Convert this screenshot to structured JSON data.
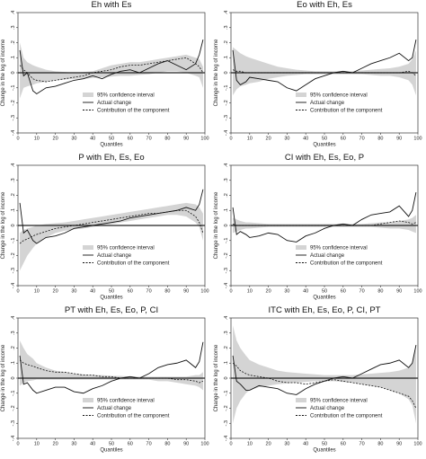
{
  "chart_data": [
    {
      "type": "line",
      "title": "Eh with Es",
      "xlabel": "Quantiles",
      "ylabel": "Change in the log of income",
      "xlim": [
        0,
        100
      ],
      "ylim": [
        -0.4,
        0.4
      ],
      "xticks": [
        "0",
        "10",
        "20",
        "30",
        "40",
        "50",
        "60",
        "70",
        "80",
        "90",
        "100"
      ],
      "yticks": [
        ".4",
        ".3",
        ".2",
        ".1",
        "0",
        "-.1",
        "-.2",
        "-.3",
        "-.4"
      ],
      "legend_position": "bottom-center",
      "x": [
        1,
        3,
        5,
        8,
        10,
        15,
        20,
        25,
        30,
        35,
        40,
        45,
        50,
        55,
        60,
        65,
        70,
        75,
        80,
        85,
        90,
        95,
        97,
        99
      ],
      "series": [
        {
          "name": "95% confidence interval",
          "style": "band",
          "lower": [
            -0.17,
            -0.1,
            -0.09,
            -0.08,
            -0.07,
            -0.06,
            -0.05,
            -0.045,
            -0.04,
            -0.04,
            -0.035,
            -0.03,
            -0.025,
            -0.02,
            -0.02,
            -0.015,
            -0.01,
            0.0,
            0.01,
            0.01,
            0.0,
            -0.02,
            -0.03,
            -0.1
          ],
          "upper": [
            0.2,
            0.1,
            0.07,
            0.05,
            0.04,
            0.02,
            0.01,
            0.005,
            0.0,
            0.005,
            0.01,
            0.03,
            0.05,
            0.06,
            0.07,
            0.07,
            0.08,
            0.09,
            0.1,
            0.11,
            0.12,
            0.1,
            0.09,
            0.04
          ]
        },
        {
          "name": "Actual change",
          "style": "solid",
          "values": [
            0.15,
            -0.02,
            0.0,
            -0.12,
            -0.14,
            -0.1,
            -0.09,
            -0.07,
            -0.05,
            -0.04,
            -0.02,
            -0.04,
            -0.01,
            0.01,
            0.02,
            0.0,
            0.03,
            0.06,
            0.08,
            0.05,
            0.02,
            0.06,
            0.12,
            0.22
          ]
        },
        {
          "name": "Contribution of the component",
          "style": "dashed",
          "values": [
            0.05,
            0.02,
            0.0,
            -0.04,
            -0.05,
            -0.06,
            -0.05,
            -0.04,
            -0.03,
            -0.02,
            0.0,
            0.01,
            0.02,
            0.04,
            0.05,
            0.05,
            0.06,
            0.07,
            0.08,
            0.09,
            0.1,
            0.06,
            0.04,
            0.0
          ]
        }
      ]
    },
    {
      "type": "line",
      "title": "Eo with Eh, Es",
      "xlabel": "Quantiles",
      "ylabel": "Change in the log of income",
      "xlim": [
        0,
        100
      ],
      "ylim": [
        -0.4,
        0.4
      ],
      "xticks": [
        "0",
        "10",
        "20",
        "30",
        "40",
        "50",
        "60",
        "70",
        "80",
        "90",
        "100"
      ],
      "yticks": [
        ".4",
        ".3",
        ".2",
        ".1",
        "0",
        "-.1",
        "-.2",
        "-.3",
        "-.4"
      ],
      "legend_position": "bottom-center",
      "x": [
        1,
        3,
        5,
        8,
        10,
        15,
        20,
        25,
        30,
        35,
        40,
        45,
        50,
        55,
        60,
        65,
        70,
        75,
        80,
        85,
        90,
        95,
        97,
        99
      ],
      "series": [
        {
          "name": "95% confidence interval",
          "style": "band",
          "lower": [
            -0.15,
            -0.11,
            -0.09,
            -0.08,
            -0.07,
            -0.06,
            -0.04,
            -0.03,
            -0.02,
            -0.015,
            -0.01,
            -0.01,
            -0.01,
            -0.01,
            -0.01,
            -0.01,
            -0.01,
            -0.015,
            -0.02,
            -0.02,
            -0.03,
            -0.05,
            -0.08,
            -0.15
          ],
          "upper": [
            0.17,
            0.15,
            0.13,
            0.11,
            0.1,
            0.08,
            0.06,
            0.04,
            0.03,
            0.02,
            0.015,
            0.01,
            0.01,
            0.01,
            0.01,
            0.01,
            0.015,
            0.02,
            0.025,
            0.03,
            0.04,
            0.06,
            0.09,
            0.15
          ]
        },
        {
          "name": "Actual change",
          "style": "solid",
          "values": [
            0.15,
            -0.05,
            -0.08,
            -0.06,
            -0.03,
            -0.04,
            -0.05,
            -0.06,
            -0.1,
            -0.12,
            -0.08,
            -0.04,
            -0.02,
            0.0,
            0.01,
            0.0,
            0.03,
            0.06,
            0.08,
            0.1,
            0.13,
            0.08,
            0.1,
            0.22
          ]
        },
        {
          "name": "Contribution of the component",
          "style": "dashed",
          "values": [
            0.02,
            0.01,
            0.01,
            0.0,
            0.0,
            0.0,
            0.0,
            0.0,
            0.0,
            0.0,
            0.0,
            0.0,
            0.0,
            0.0,
            0.0,
            0.0,
            0.0,
            0.0,
            0.0,
            0.0,
            0.0,
            0.01,
            0.0,
            -0.02
          ]
        }
      ]
    },
    {
      "type": "line",
      "title": "P with Eh, Es, Eo",
      "xlabel": "Quantiles",
      "ylabel": "Change in the log of income",
      "xlim": [
        0,
        100
      ],
      "ylim": [
        -0.4,
        0.4
      ],
      "xticks": [
        "0",
        "10",
        "20",
        "30",
        "40",
        "50",
        "60",
        "70",
        "80",
        "90",
        "100"
      ],
      "yticks": [
        ".4",
        ".3",
        ".2",
        ".1",
        "0",
        "-.1",
        "-.2",
        "-.3",
        "-.4"
      ],
      "legend_position": "bottom-center",
      "x": [
        1,
        3,
        5,
        8,
        10,
        15,
        20,
        25,
        30,
        35,
        40,
        45,
        50,
        55,
        60,
        65,
        70,
        75,
        80,
        85,
        90,
        95,
        97,
        99
      ],
      "series": [
        {
          "name": "95% confidence interval",
          "style": "band",
          "lower": [
            -0.3,
            -0.25,
            -0.2,
            -0.15,
            -0.12,
            -0.08,
            -0.05,
            -0.035,
            -0.025,
            -0.02,
            -0.01,
            0.0,
            0.01,
            0.02,
            0.03,
            0.04,
            0.05,
            0.06,
            0.07,
            0.07,
            0.06,
            0.02,
            -0.01,
            -0.1
          ],
          "upper": [
            -0.05,
            -0.03,
            -0.02,
            -0.01,
            0.0,
            0.01,
            0.015,
            0.02,
            0.03,
            0.04,
            0.05,
            0.06,
            0.07,
            0.08,
            0.09,
            0.1,
            0.11,
            0.12,
            0.13,
            0.14,
            0.15,
            0.14,
            0.12,
            0.08
          ]
        },
        {
          "name": "Actual change",
          "style": "solid",
          "values": [
            0.15,
            -0.05,
            -0.03,
            -0.1,
            -0.12,
            -0.08,
            -0.07,
            -0.05,
            -0.02,
            -0.01,
            0.0,
            0.01,
            0.02,
            0.03,
            0.05,
            0.06,
            0.07,
            0.08,
            0.09,
            0.1,
            0.12,
            0.1,
            0.14,
            0.24
          ]
        },
        {
          "name": "Contribution of the component",
          "style": "dashed",
          "values": [
            -0.12,
            -0.1,
            -0.09,
            -0.07,
            -0.06,
            -0.04,
            -0.02,
            -0.01,
            0.0,
            0.01,
            0.02,
            0.03,
            0.04,
            0.05,
            0.06,
            0.07,
            0.08,
            0.08,
            0.09,
            0.1,
            0.1,
            0.06,
            0.02,
            -0.05
          ]
        }
      ]
    },
    {
      "type": "line",
      "title": "CI with Eh, Es, Eo, P",
      "xlabel": "Quantiles",
      "ylabel": "Change in the log of income",
      "xlim": [
        0,
        100
      ],
      "ylim": [
        -0.4,
        0.4
      ],
      "xticks": [
        "0",
        "10",
        "20",
        "30",
        "40",
        "50",
        "60",
        "70",
        "80",
        "90",
        "100"
      ],
      "yticks": [
        ".4",
        ".3",
        ".2",
        ".1",
        "0",
        "-.1",
        "-.2",
        "-.3",
        "-.4"
      ],
      "legend_position": "bottom-center",
      "x": [
        1,
        3,
        5,
        8,
        10,
        15,
        20,
        25,
        30,
        35,
        40,
        45,
        50,
        55,
        60,
        65,
        70,
        75,
        80,
        85,
        90,
        95,
        97,
        99
      ],
      "series": [
        {
          "name": "95% confidence interval",
          "style": "band",
          "lower": [
            -0.05,
            -0.04,
            -0.03,
            -0.02,
            -0.02,
            -0.015,
            -0.01,
            -0.01,
            -0.01,
            -0.01,
            -0.01,
            -0.01,
            -0.01,
            -0.01,
            -0.01,
            -0.01,
            -0.01,
            -0.01,
            -0.015,
            -0.02,
            -0.02,
            -0.03,
            -0.04,
            -0.05
          ],
          "upper": [
            0.05,
            0.04,
            0.03,
            0.02,
            0.02,
            0.015,
            0.01,
            0.01,
            0.01,
            0.01,
            0.01,
            0.01,
            0.01,
            0.01,
            0.01,
            0.01,
            0.01,
            0.015,
            0.02,
            0.02,
            0.03,
            0.04,
            0.05,
            0.07
          ]
        },
        {
          "name": "Actual change",
          "style": "solid",
          "values": [
            0.12,
            -0.06,
            -0.04,
            -0.06,
            -0.08,
            -0.07,
            -0.05,
            -0.06,
            -0.1,
            -0.11,
            -0.07,
            -0.05,
            -0.02,
            0.0,
            0.01,
            0.0,
            0.04,
            0.07,
            0.08,
            0.09,
            0.13,
            0.06,
            0.1,
            0.22
          ]
        },
        {
          "name": "Contribution of the component",
          "style": "dashed",
          "values": [
            0.01,
            0.0,
            0.0,
            0.0,
            0.0,
            0.0,
            0.0,
            0.0,
            0.0,
            0.0,
            0.0,
            0.0,
            0.0,
            0.0,
            0.0,
            0.0,
            0.0,
            0.0,
            0.01,
            0.02,
            0.03,
            0.02,
            0.01,
            0.02
          ]
        }
      ]
    },
    {
      "type": "line",
      "title": "PT with Eh, Es, Eo, P, CI",
      "xlabel": "Quantiles",
      "ylabel": "Change in the log of income",
      "xlim": [
        0,
        100
      ],
      "ylim": [
        -0.4,
        0.4
      ],
      "xticks": [
        "0",
        "10",
        "20",
        "30",
        "40",
        "50",
        "60",
        "70",
        "80",
        "90",
        "100"
      ],
      "yticks": [
        ".4",
        ".3",
        ".2",
        ".1",
        "0",
        "-.1",
        "-.2",
        "-.3",
        "-.4"
      ],
      "legend_position": "bottom-center",
      "x": [
        1,
        3,
        5,
        8,
        10,
        15,
        20,
        25,
        30,
        35,
        40,
        45,
        50,
        55,
        60,
        65,
        70,
        75,
        80,
        85,
        90,
        95,
        97,
        99
      ],
      "series": [
        {
          "name": "95% confidence interval",
          "style": "band",
          "lower": [
            -0.05,
            -0.03,
            -0.02,
            -0.015,
            -0.01,
            -0.01,
            -0.01,
            -0.01,
            -0.01,
            -0.01,
            -0.01,
            -0.01,
            -0.01,
            -0.01,
            -0.01,
            -0.01,
            -0.01,
            -0.02,
            -0.02,
            -0.03,
            -0.04,
            -0.05,
            -0.06,
            -0.08
          ],
          "upper": [
            0.25,
            0.2,
            0.16,
            0.13,
            0.1,
            0.07,
            0.05,
            0.04,
            0.03,
            0.025,
            0.02,
            0.02,
            0.015,
            0.015,
            0.01,
            0.01,
            0.01,
            0.01,
            0.01,
            0.01,
            0.01,
            0.02,
            0.02,
            0.04
          ]
        },
        {
          "name": "Actual change",
          "style": "solid",
          "values": [
            0.15,
            -0.04,
            -0.03,
            -0.08,
            -0.1,
            -0.08,
            -0.06,
            -0.06,
            -0.09,
            -0.1,
            -0.07,
            -0.05,
            -0.02,
            0.0,
            0.01,
            0.0,
            0.03,
            0.07,
            0.09,
            0.1,
            0.12,
            0.07,
            0.11,
            0.24
          ]
        },
        {
          "name": "Contribution of the component",
          "style": "dashed",
          "values": [
            0.12,
            0.1,
            0.09,
            0.08,
            0.07,
            0.05,
            0.04,
            0.04,
            0.03,
            0.02,
            0.02,
            0.01,
            0.01,
            0.0,
            0.0,
            0.0,
            0.0,
            0.0,
            0.0,
            -0.01,
            -0.01,
            -0.02,
            -0.03,
            -0.02
          ]
        }
      ]
    },
    {
      "type": "line",
      "title": "ITC with Eh, Es, Eo, P, CI, PT",
      "xlabel": "Quantiles",
      "ylabel": "Change in the log of income",
      "xlim": [
        0,
        100
      ],
      "ylim": [
        -0.4,
        0.4
      ],
      "xticks": [
        "0",
        "10",
        "20",
        "30",
        "40",
        "50",
        "60",
        "70",
        "80",
        "90",
        "100"
      ],
      "yticks": [
        ".4",
        ".3",
        ".2",
        ".1",
        "0",
        "-.1",
        "-.2",
        "-.3",
        "-.4"
      ],
      "legend_position": "bottom-center",
      "x": [
        1,
        3,
        5,
        8,
        10,
        15,
        20,
        25,
        30,
        35,
        40,
        45,
        50,
        55,
        60,
        65,
        70,
        75,
        80,
        85,
        90,
        95,
        97,
        99
      ],
      "series": [
        {
          "name": "95% confidence interval",
          "style": "band",
          "lower": [
            -0.3,
            -0.2,
            -0.15,
            -0.1,
            -0.08,
            -0.06,
            -0.05,
            -0.04,
            -0.035,
            -0.03,
            -0.025,
            -0.02,
            -0.02,
            -0.02,
            -0.025,
            -0.03,
            -0.04,
            -0.05,
            -0.06,
            -0.08,
            -0.1,
            -0.14,
            -0.18,
            -0.3
          ],
          "upper": [
            0.35,
            0.25,
            0.2,
            0.15,
            0.12,
            0.09,
            0.07,
            0.05,
            0.04,
            0.035,
            0.03,
            0.025,
            0.02,
            0.02,
            0.02,
            0.02,
            0.025,
            0.03,
            0.035,
            0.04,
            0.05,
            0.07,
            0.1,
            0.2
          ]
        },
        {
          "name": "Actual change",
          "style": "solid",
          "values": [
            0.15,
            -0.02,
            -0.04,
            -0.08,
            -0.08,
            -0.05,
            -0.06,
            -0.07,
            -0.1,
            -0.11,
            -0.07,
            -0.04,
            -0.02,
            0.0,
            0.01,
            0.0,
            0.03,
            0.06,
            0.09,
            0.1,
            0.12,
            0.07,
            0.1,
            0.22
          ]
        },
        {
          "name": "Contribution of the component",
          "style": "dashed",
          "values": [
            0.1,
            0.08,
            0.05,
            0.03,
            0.02,
            0.01,
            0.0,
            -0.02,
            -0.03,
            -0.03,
            -0.04,
            -0.03,
            -0.02,
            -0.01,
            -0.02,
            -0.03,
            -0.04,
            -0.05,
            -0.06,
            -0.08,
            -0.1,
            -0.12,
            -0.15,
            -0.2
          ]
        }
      ]
    }
  ]
}
